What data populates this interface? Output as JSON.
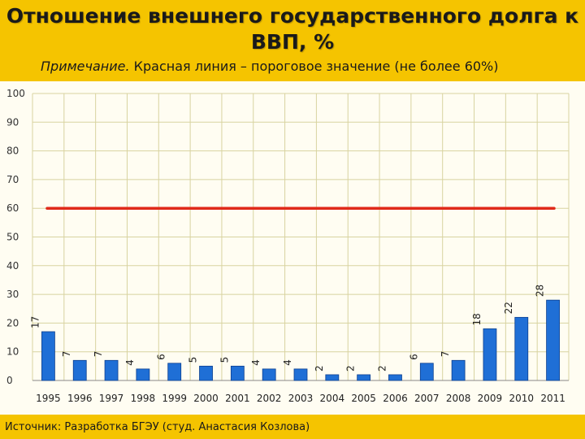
{
  "header": {
    "title_line1": "Отношение внешнего государственного долга к",
    "title_line2": "ВВП, %",
    "note_prefix": "Примечание.",
    "note_text": " Красная линия – пороговое значение (не более 60%)"
  },
  "footer": {
    "source": "Источник: Разработка БГЭУ (студ. Анастасия Козлова)"
  },
  "colors": {
    "bar": "#1f6fd6",
    "threshold": "#e02a1a",
    "grid": "#d8d3a0",
    "background": "#f5c400"
  },
  "chart_data": {
    "type": "bar",
    "title": "Отношение внешнего государственного долга к ВВП, %",
    "categories": [
      "1995",
      "1996",
      "1997",
      "1998",
      "1999",
      "2000",
      "2001",
      "2002",
      "2003",
      "2004",
      "2005",
      "2006",
      "2007",
      "2008",
      "2009",
      "2010",
      "2011"
    ],
    "values": [
      17,
      7,
      7,
      4,
      6,
      5,
      5,
      4,
      4,
      2,
      2,
      2,
      6,
      7,
      18,
      22,
      28
    ],
    "ylim": [
      0,
      100
    ],
    "yticks": [
      0,
      10,
      20,
      30,
      40,
      50,
      60,
      70,
      80,
      90,
      100
    ],
    "threshold": 60,
    "grid": true,
    "legend": "none"
  }
}
